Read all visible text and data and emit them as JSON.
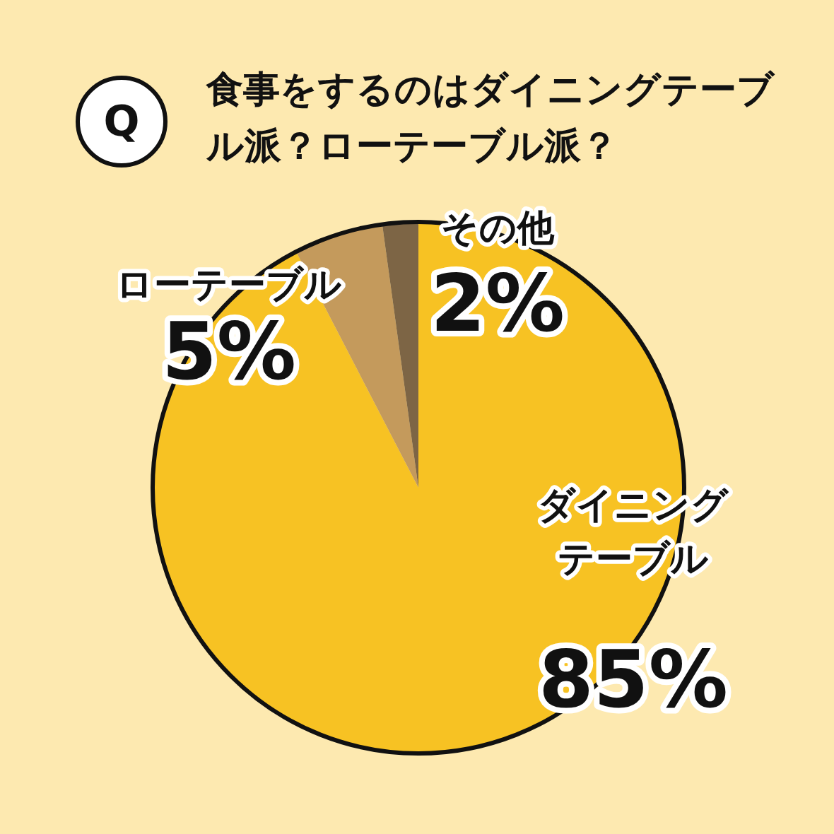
{
  "chart_data": {
    "type": "pie",
    "title": "食事をするのはダイニングテーブル派？ローテーブル派？",
    "annotations": [
      "Q"
    ],
    "categories": [
      "ダイニングテーブル",
      "ローテーブル",
      "その他"
    ],
    "values": [
      85,
      5,
      2
    ],
    "value_labels": [
      "85%",
      "5%",
      "2%"
    ],
    "colors": [
      "#f7c223",
      "#c49a5c",
      "#7d6545"
    ]
  }
}
